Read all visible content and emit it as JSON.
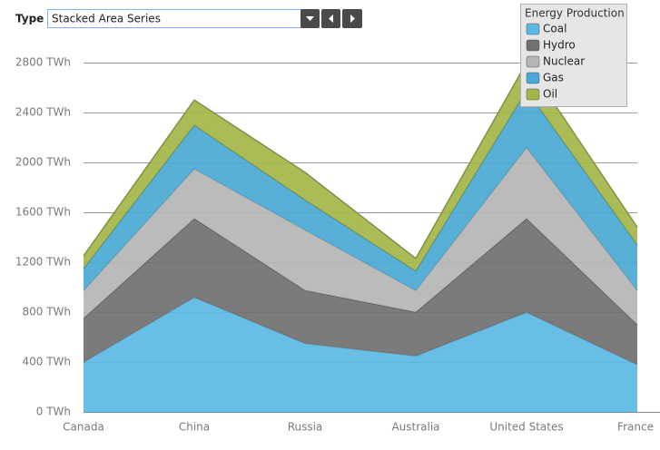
{
  "controls": {
    "label": "Type",
    "selected": "Stacked Area Series"
  },
  "chart_data": {
    "type": "stacked_area",
    "legend_title": "Energy Production",
    "legend": "top-right",
    "grid": true,
    "categories": [
      "Canada",
      "China",
      "Russia",
      "Australia",
      "United States",
      "France"
    ],
    "series": [
      {
        "name": "Coal",
        "color": "#5cb9e3",
        "values": [
          400,
          920,
          550,
          450,
          800,
          380
        ]
      },
      {
        "name": "Hydro",
        "color": "#707070",
        "values": [
          350,
          630,
          425,
          350,
          750,
          320
        ]
      },
      {
        "name": "Nuclear",
        "color": "#b5b5b5",
        "values": [
          225,
          400,
          485,
          175,
          570,
          275
        ]
      },
      {
        "name": "Gas",
        "color": "#4aa9d4",
        "values": [
          175,
          350,
          240,
          155,
          460,
          365
        ]
      },
      {
        "name": "Oil",
        "color": "#a4b548",
        "values": [
          100,
          200,
          220,
          100,
          220,
          140
        ]
      }
    ],
    "ylim": [
      0,
      2800
    ],
    "yticks": [
      {
        "value": 0,
        "label": "0 TWh"
      },
      {
        "value": 400,
        "label": "400 TWh"
      },
      {
        "value": 800,
        "label": "800 TWh"
      },
      {
        "value": 1200,
        "label": "1200 TWh"
      },
      {
        "value": 1600,
        "label": "1600 TWh"
      },
      {
        "value": 2000,
        "label": "2000 TWh"
      },
      {
        "value": 2400,
        "label": "2400 TWh"
      },
      {
        "value": 2800,
        "label": "2800 TWh"
      }
    ]
  }
}
